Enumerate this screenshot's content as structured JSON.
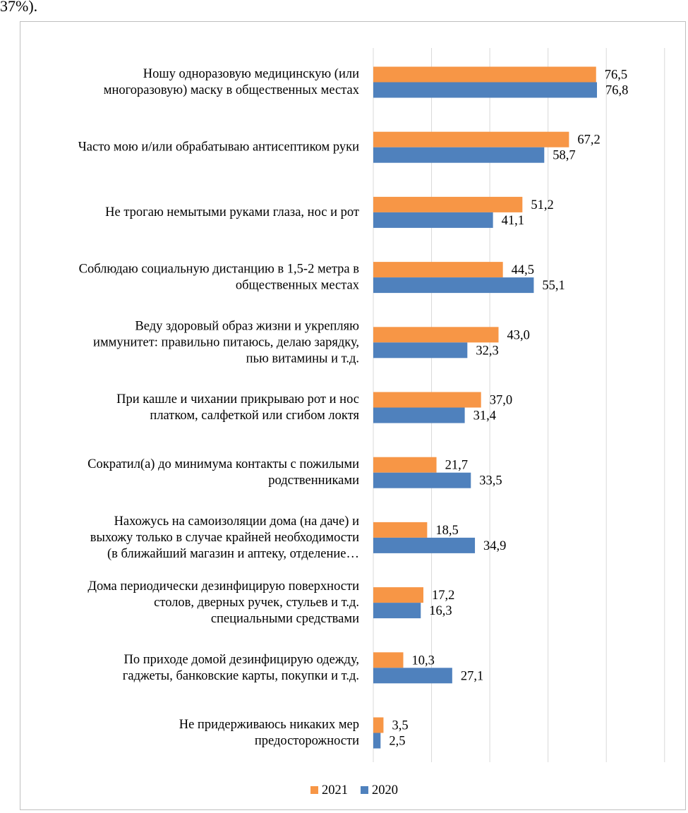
{
  "page": {
    "top_text": "37%)."
  },
  "chart_data": {
    "type": "bar",
    "orientation": "horizontal",
    "categories": [
      [
        "Ношу одноразовую медицинскую (или",
        "многоразовую) маску в общественных местах"
      ],
      [
        "Часто мою и/или обрабатываю антисептиком руки"
      ],
      [
        "Не трогаю немытыми руками глаза, нос и рот"
      ],
      [
        "Соблюдаю социальную дистанцию в 1,5-2 метра в",
        "общественных местах"
      ],
      [
        "Веду здоровый образ жизни и укрепляю",
        "иммунитет: правильно питаюсь, делаю зарядку,",
        "пью витамины и т.д."
      ],
      [
        "При кашле и чихании прикрываю рот и нос",
        "платком, салфеткой или сгибом локтя"
      ],
      [
        "Сократил(а) до минимума контакты с пожилыми",
        "родственниками"
      ],
      [
        "Нахожусь на самоизоляции дома (на даче) и",
        "выхожу только в случае крайней необходимости",
        "(в ближайший магазин и аптеку, отделение…"
      ],
      [
        "Дома периодически дезинфицирую поверхности",
        "столов, дверных ручек, стульев и т.д.",
        "специальными средствами"
      ],
      [
        "По приходе домой дезинфицирую одежду,",
        "гаджеты, банковские карты, покупки и т.д."
      ],
      [
        "Не придерживаюсь никаких мер",
        "предосторожности"
      ]
    ],
    "series": [
      {
        "name": "2021",
        "color": "#f79646",
        "values": [
          76.5,
          67.2,
          51.2,
          44.5,
          43.0,
          37.0,
          21.7,
          18.5,
          17.2,
          10.3,
          3.5
        ],
        "labels": [
          "76,5",
          "67,2",
          "51,2",
          "44,5",
          "43,0",
          "37,0",
          "21,7",
          "18,5",
          "17,2",
          "10,3",
          "3,5"
        ]
      },
      {
        "name": "2020",
        "color": "#4f81bd",
        "values": [
          76.8,
          58.7,
          41.1,
          55.1,
          32.3,
          31.4,
          33.5,
          34.9,
          16.3,
          27.1,
          2.5
        ],
        "labels": [
          "76,8",
          "58,7",
          "41,1",
          "55,1",
          "32,3",
          "31,4",
          "33,5",
          "34,9",
          "16,3",
          "27,1",
          "2,5"
        ]
      }
    ],
    "xlim": [
      0,
      100
    ],
    "x_gridline_step": 20,
    "tick_labels_shown": false,
    "grid": true,
    "legend_position": "bottom"
  }
}
